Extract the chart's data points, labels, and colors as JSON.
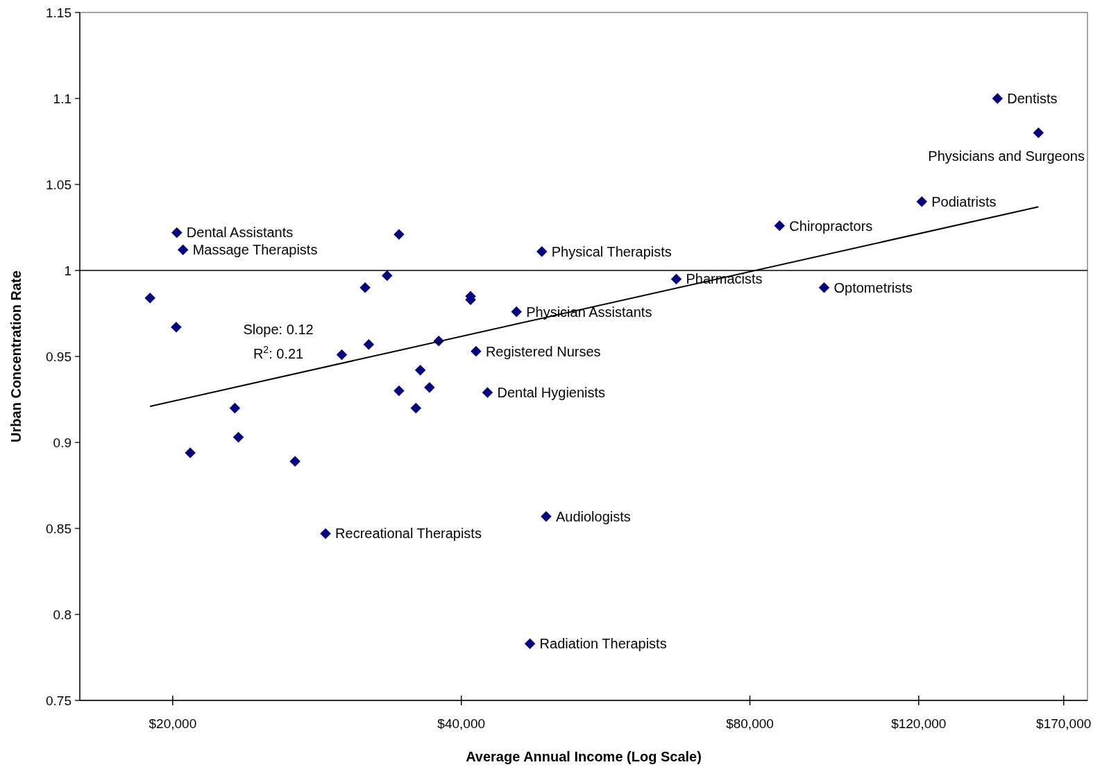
{
  "chart_data": {
    "type": "scatter",
    "xlabel": "Average Annual Income (Log Scale)",
    "ylabel": "Urban Concentration Rate",
    "log": "x",
    "xlim": [
      16000,
      180000
    ],
    "ylim": [
      0.75,
      1.15
    ],
    "xticks": [
      {
        "value": 20000,
        "label": "$20,000"
      },
      {
        "value": 40000,
        "label": "$40,000"
      },
      {
        "value": 80000,
        "label": "$80,000"
      },
      {
        "value": 120000,
        "label": "$120,000"
      },
      {
        "value": 170000,
        "label": "$170,000"
      }
    ],
    "yticks": [
      0.75,
      0.8,
      0.85,
      0.9,
      0.95,
      1,
      1.05,
      1.1,
      1.15
    ],
    "grid": false,
    "marker": "diamond",
    "series": [
      {
        "color": "#000080",
        "x": [
          18940,
          20200,
          20500,
          20170,
          20860,
          23220,
          23420,
          26830,
          28870,
          30020,
          31750,
          32030,
          33470,
          34440,
          34440,
          35870,
          36250,
          37060,
          37890,
          40900,
          40900,
          41440,
          42600,
          45670,
          47170,
          48540,
          49040,
          67040,
          85920,
          95620,
          120900,
          145000,
          160000
        ],
        "values": [
          0.984,
          1.022,
          1.012,
          0.967,
          0.894,
          0.92,
          0.903,
          0.889,
          0.847,
          0.951,
          0.99,
          0.957,
          0.997,
          1.021,
          0.93,
          0.92,
          0.942,
          0.932,
          0.959,
          0.985,
          0.983,
          0.953,
          0.929,
          0.976,
          0.783,
          1.011,
          0.857,
          0.995,
          1.026,
          0.99,
          1.04,
          1.1,
          1.08
        ]
      },
      {
        "type": "line",
        "color": "#000000",
        "line_style": "solid",
        "marker": "none",
        "x": [
          18940,
          160000
        ],
        "values": [
          0.921,
          1.037
        ]
      }
    ],
    "ref_lines": [
      {
        "axis": "y",
        "value": 1,
        "color": "#000000"
      }
    ],
    "annotations": [
      "Slope: 0.12",
      "R$^{2}$: 0.21",
      {
        "text": "Dental Assistants",
        "x": 20200,
        "y": 1.022
      },
      {
        "text": "Massage Therapists",
        "x": 20500,
        "y": 1.012
      },
      {
        "text": "Recreational Therapists",
        "x": 28870,
        "y": 0.847
      },
      {
        "text": "Dental Hygienists",
        "x": 42600,
        "y": 0.929
      },
      {
        "text": "Registered Nurses",
        "x": 41440,
        "y": 0.953
      },
      {
        "text": "Physician Assistants",
        "x": 45670,
        "y": 0.976
      },
      {
        "text": "Radiation Therapists",
        "x": 47170,
        "y": 0.783
      },
      {
        "text": "Physical Therapists",
        "x": 48540,
        "y": 1.011
      },
      {
        "text": "Audiologists",
        "x": 49040,
        "y": 0.857
      },
      {
        "text": "Pharmacists",
        "x": 67040,
        "y": 0.995
      },
      {
        "text": "Chiropractors",
        "x": 85920,
        "y": 1.026
      },
      {
        "text": "Optometrists",
        "x": 95620,
        "y": 0.99
      },
      {
        "text": "Podiatrists",
        "x": 120900,
        "y": 1.04
      },
      {
        "text": "Dentists",
        "x": 145000,
        "y": 1.1
      },
      {
        "text": "Physicians and Surgeons",
        "x": 160000,
        "y": 1.08
      }
    ]
  }
}
